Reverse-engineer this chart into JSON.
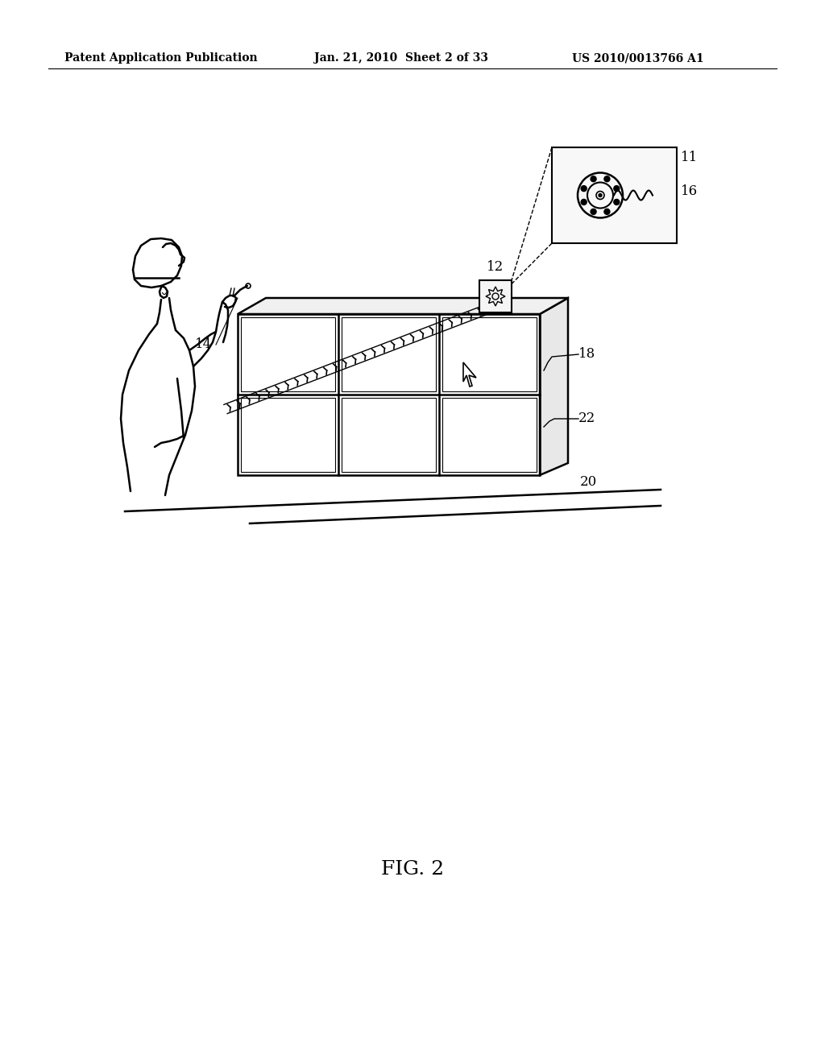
{
  "background_color": "#ffffff",
  "header_left": "Patent Application Publication",
  "header_mid": "Jan. 21, 2010  Sheet 2 of 33",
  "header_right": "US 2010/0013766 A1",
  "fig_label": "FIG. 2",
  "label_11": "11",
  "label_12": "12",
  "label_14": "14",
  "label_16": "16",
  "label_18": "18",
  "label_20": "20",
  "label_22": "22",
  "line_color": "#000000",
  "line_width": 1.8,
  "header_fontsize": 10,
  "label_fontsize": 12,
  "fig_label_fontsize": 18
}
